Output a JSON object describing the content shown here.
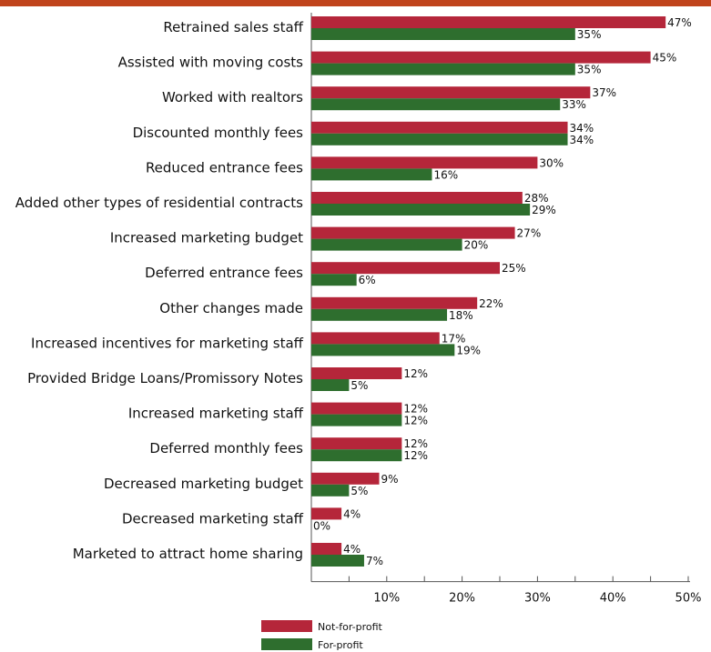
{
  "colors": {
    "header_bar": "#c0441c",
    "not_for_profit": "#b5263a",
    "for_profit": "#2e6e2e",
    "axis": "#555555",
    "text": "#111111"
  },
  "chart_data": {
    "type": "bar",
    "orientation": "horizontal",
    "categories": [
      "Retrained sales staff",
      "Assisted with moving costs",
      "Worked with realtors",
      "Discounted monthly fees",
      "Reduced entrance fees",
      "Added other types of residential contracts",
      "Increased marketing budget",
      "Deferred entrance fees",
      "Other changes made",
      "Increased incentives for marketing staff",
      "Provided Bridge Loans/Promissory Notes",
      "Increased marketing staff",
      "Deferred monthly fees",
      "Decreased marketing budget",
      "Decreased marketing staff",
      "Marketed to attract home sharing"
    ],
    "series": [
      {
        "name": "Not-for-profit",
        "values": [
          47,
          45,
          37,
          34,
          30,
          28,
          27,
          25,
          22,
          17,
          12,
          12,
          12,
          9,
          4,
          4
        ],
        "labels": [
          "47%",
          "45%",
          "37%",
          "34%",
          "30%",
          "28%",
          "27%",
          "25%",
          "22%",
          "17%",
          "12%",
          "12%",
          "12%",
          "9%",
          "4%",
          "4%"
        ]
      },
      {
        "name": "For-profit",
        "values": [
          35,
          35,
          33,
          34,
          16,
          29,
          20,
          6,
          18,
          19,
          5,
          12,
          12,
          5,
          0,
          7
        ],
        "labels": [
          "35%",
          "35%",
          "33%",
          "34%",
          "16%",
          "29%",
          "20%",
          "6%",
          "18%",
          "19%",
          "5%",
          "12%",
          "12%",
          "5%",
          "0%",
          "7%"
        ]
      }
    ],
    "xlim": [
      0,
      50
    ],
    "xticks": [
      10,
      20,
      30,
      40,
      50
    ],
    "xtick_labels": [
      "10%",
      "20%",
      "30%",
      "40%",
      "50%"
    ],
    "legend_position": "bottom-center"
  }
}
